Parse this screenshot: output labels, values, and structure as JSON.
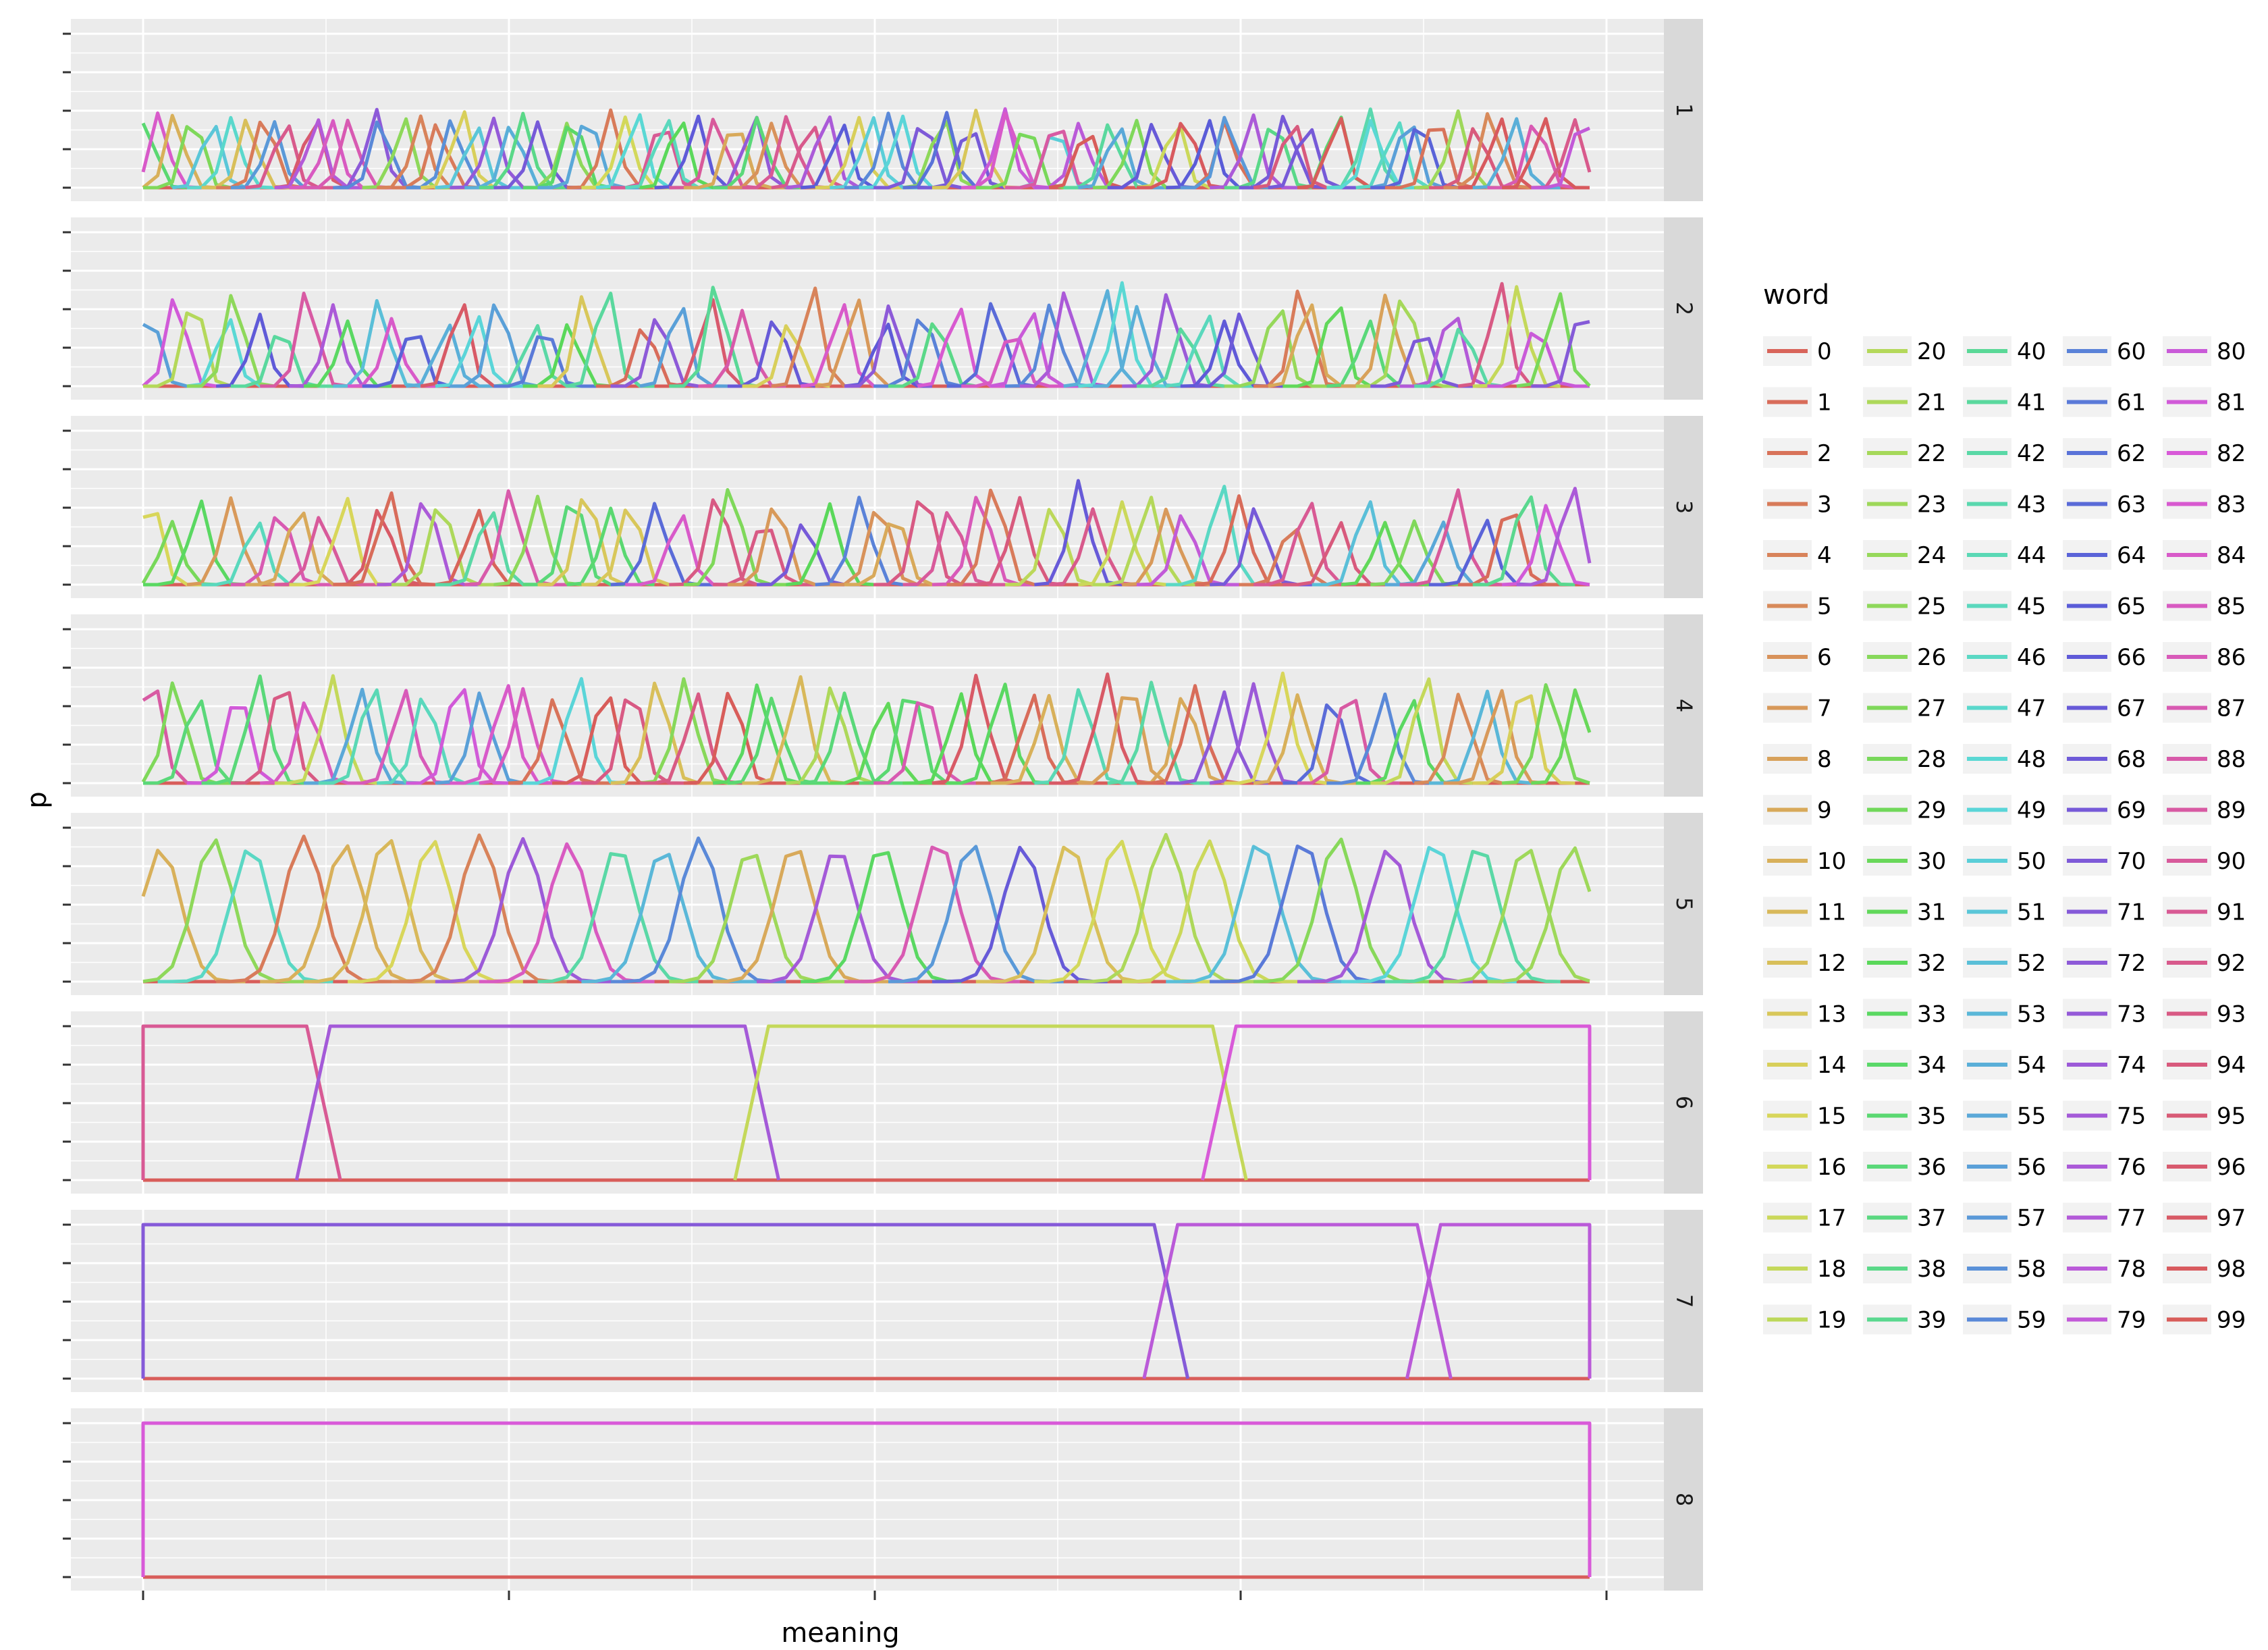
{
  "chart_data": {
    "type": "line",
    "title": "",
    "xlabel": "meaning",
    "ylabel": "p",
    "xlim": [
      0,
      99
    ],
    "ylim": [
      0,
      1
    ],
    "facet_by": "panel",
    "facets": [
      {
        "label": "1",
        "peak_count": 92,
        "peak_height": [
          0.42,
          0.52
        ],
        "seed": 11
      },
      {
        "label": "2",
        "peak_count": 66,
        "peak_height": [
          0.4,
          0.7
        ],
        "seed": 23
      },
      {
        "label": "3",
        "peak_count": 60,
        "peak_height": [
          0.4,
          0.68
        ],
        "seed": 37
      },
      {
        "label": "4",
        "peak_count": 58,
        "peak_height": [
          0.55,
          0.72
        ],
        "seed": 41
      },
      {
        "label": "5",
        "peak_count": 32,
        "peak_height": [
          0.86,
          0.96
        ],
        "seed": 53
      },
      {
        "label": "6",
        "segments": [
          {
            "word": 91,
            "from": 0,
            "to": 12
          },
          {
            "word": 75,
            "from": 12,
            "to": 42
          },
          {
            "word": 18,
            "from": 42,
            "to": 74
          },
          {
            "word": 82,
            "from": 74,
            "to": 99
          }
        ]
      },
      {
        "label": "7",
        "segments": [
          {
            "word": 71,
            "from": 0,
            "to": 70
          },
          {
            "word": 78,
            "from": 70,
            "to": 88
          },
          {
            "word": 78,
            "from": 88,
            "to": 99
          }
        ]
      },
      {
        "label": "8",
        "segments": [
          {
            "word": 82,
            "from": 0,
            "to": 99
          }
        ]
      }
    ],
    "legend": {
      "title": "word",
      "position": "right",
      "entries": [
        "0",
        "1",
        "2",
        "3",
        "4",
        "5",
        "6",
        "7",
        "8",
        "9",
        "10",
        "11",
        "12",
        "13",
        "14",
        "15",
        "16",
        "17",
        "18",
        "19",
        "20",
        "21",
        "22",
        "23",
        "24",
        "25",
        "26",
        "27",
        "28",
        "29",
        "30",
        "31",
        "32",
        "33",
        "34",
        "35",
        "36",
        "37",
        "38",
        "39",
        "40",
        "41",
        "42",
        "43",
        "44",
        "45",
        "46",
        "47",
        "48",
        "49",
        "50",
        "51",
        "52",
        "53",
        "54",
        "55",
        "56",
        "57",
        "58",
        "59",
        "60",
        "61",
        "62",
        "63",
        "64",
        "65",
        "66",
        "67",
        "68",
        "69",
        "70",
        "71",
        "72",
        "73",
        "74",
        "75",
        "76",
        "77",
        "78",
        "79",
        "80",
        "81",
        "82",
        "83",
        "84",
        "85",
        "86",
        "87",
        "88",
        "89",
        "90",
        "91",
        "92",
        "93",
        "94",
        "95",
        "96",
        "97",
        "98",
        "99"
      ]
    },
    "grid": true,
    "panel_background": "#EBEBEB",
    "strip_background": "#D9D9D9",
    "grid_color": "#FFFFFF"
  }
}
